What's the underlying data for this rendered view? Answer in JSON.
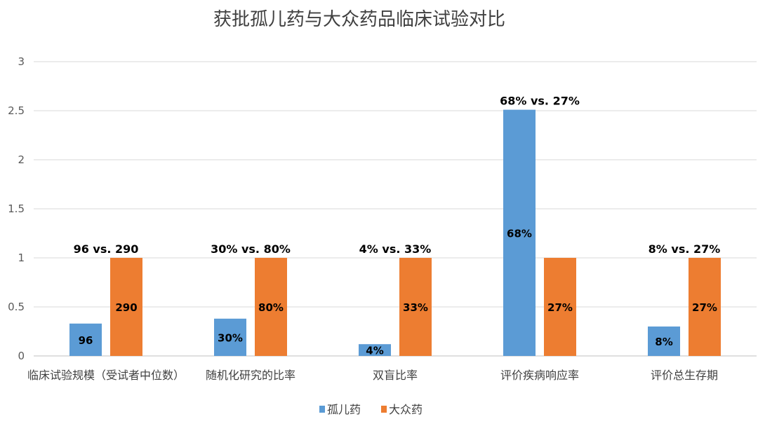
{
  "chart_data": {
    "type": "bar",
    "title": "获批孤儿药与大众药品临床试验对比",
    "categories": [
      "临床试验规模（受试者中位数）",
      "随机化研究的比率",
      "双盲比率",
      "评价疾病响应率",
      "评价总生存期"
    ],
    "series": [
      {
        "name": "孤儿药",
        "color": "#5B9BD5",
        "values": [
          0.33,
          0.38,
          0.12,
          2.51,
          0.3
        ],
        "labels": [
          "96",
          "30%",
          "4%",
          "68%",
          "8%"
        ]
      },
      {
        "name": "大众药",
        "color": "#ED7D31",
        "values": [
          1,
          1,
          1,
          1,
          1
        ],
        "labels": [
          "290",
          "80%",
          "33%",
          "27%",
          "27%"
        ]
      }
    ],
    "comparison_labels": [
      "96  vs. 290",
      "30%  vs. 80%",
      "4%  vs. 33%",
      "68%  vs. 27%",
      "8%  vs. 27%"
    ],
    "ylim": [
      0,
      3
    ],
    "yticks": [
      "0",
      "0.5",
      "1",
      "1.5",
      "2",
      "2.5",
      "3"
    ],
    "grid": true,
    "legend_position": "bottom"
  }
}
